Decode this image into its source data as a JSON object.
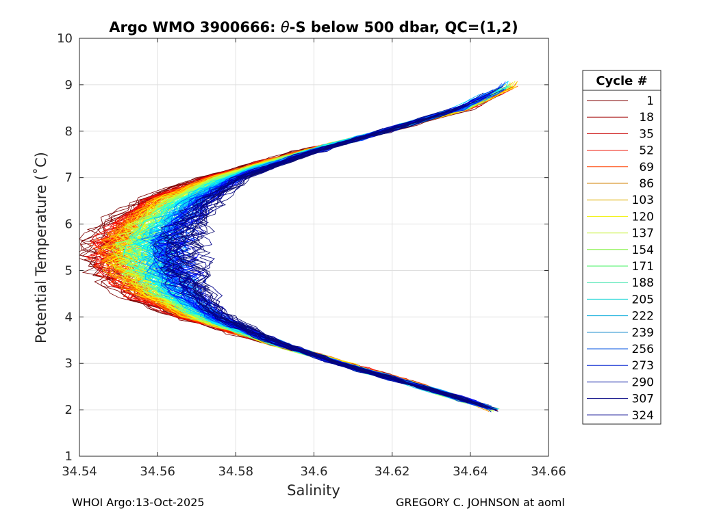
{
  "chart_data": {
    "type": "line",
    "title_prefix": "Argo WMO 3900666: ",
    "title_theta": "θ",
    "title_suffix": "-S below 500 dbar,  QC=(1,2)",
    "xlabel": "Salinity",
    "ylabel": "Potential Temperature (˚C)",
    "xlim": [
      34.54,
      34.66
    ],
    "ylim": [
      1,
      10
    ],
    "x_ticks": [
      34.54,
      34.56,
      34.58,
      34.6,
      34.62,
      34.64,
      34.66
    ],
    "x_tick_labels": [
      "34.54",
      "34.56",
      "34.58",
      "34.6",
      "34.62",
      "34.64",
      "34.66"
    ],
    "y_ticks": [
      1,
      2,
      3,
      4,
      5,
      6,
      7,
      8,
      9,
      10
    ],
    "y_tick_labels": [
      "1",
      "2",
      "3",
      "4",
      "5",
      "6",
      "7",
      "8",
      "9",
      "10"
    ],
    "grid": true,
    "legend_title": "Cycle #",
    "legend_position": "right-outside",
    "legend": [
      {
        "label": "1",
        "color": "#800000"
      },
      {
        "label": "18",
        "color": "#a00000"
      },
      {
        "label": "35",
        "color": "#c80000"
      },
      {
        "label": "52",
        "color": "#ee1000"
      },
      {
        "label": "69",
        "color": "#ff4000"
      },
      {
        "label": "86",
        "color": "#d08000"
      },
      {
        "label": "103",
        "color": "#e0b000"
      },
      {
        "label": "120",
        "color": "#f0f000"
      },
      {
        "label": "137",
        "color": "#c0f020"
      },
      {
        "label": "154",
        "color": "#80f040"
      },
      {
        "label": "171",
        "color": "#40f060"
      },
      {
        "label": "188",
        "color": "#20e0a0"
      },
      {
        "label": "205",
        "color": "#00d0d0"
      },
      {
        "label": "222",
        "color": "#00a8d8"
      },
      {
        "label": "239",
        "color": "#0080c8"
      },
      {
        "label": "256",
        "color": "#0050e0"
      },
      {
        "label": "273",
        "color": "#0020d0"
      },
      {
        "label": "290",
        "color": "#0010a0"
      },
      {
        "label": "307",
        "color": "#000080"
      },
      {
        "label": "324",
        "color": "#00008c"
      }
    ],
    "profile_shape": {
      "theta": [
        2.0,
        2.5,
        3.0,
        3.5,
        4.0,
        4.5,
        5.0,
        5.5,
        6.0,
        6.5,
        7.0,
        7.5,
        8.0,
        8.5,
        9.0
      ],
      "salinity_early": [
        34.646,
        34.628,
        34.608,
        34.587,
        34.566,
        34.553,
        34.547,
        34.545,
        34.549,
        34.556,
        34.572,
        34.594,
        34.618,
        34.64,
        34.652
      ],
      "salinity_late": [
        34.647,
        34.627,
        34.606,
        34.589,
        34.577,
        34.571,
        34.568,
        34.567,
        34.569,
        34.574,
        34.582,
        34.598,
        34.618,
        34.637,
        34.649
      ]
    }
  },
  "footer": {
    "left": "WHOI Argo:13-Oct-2025",
    "right": "GREGORY C. JOHNSON at aoml"
  }
}
